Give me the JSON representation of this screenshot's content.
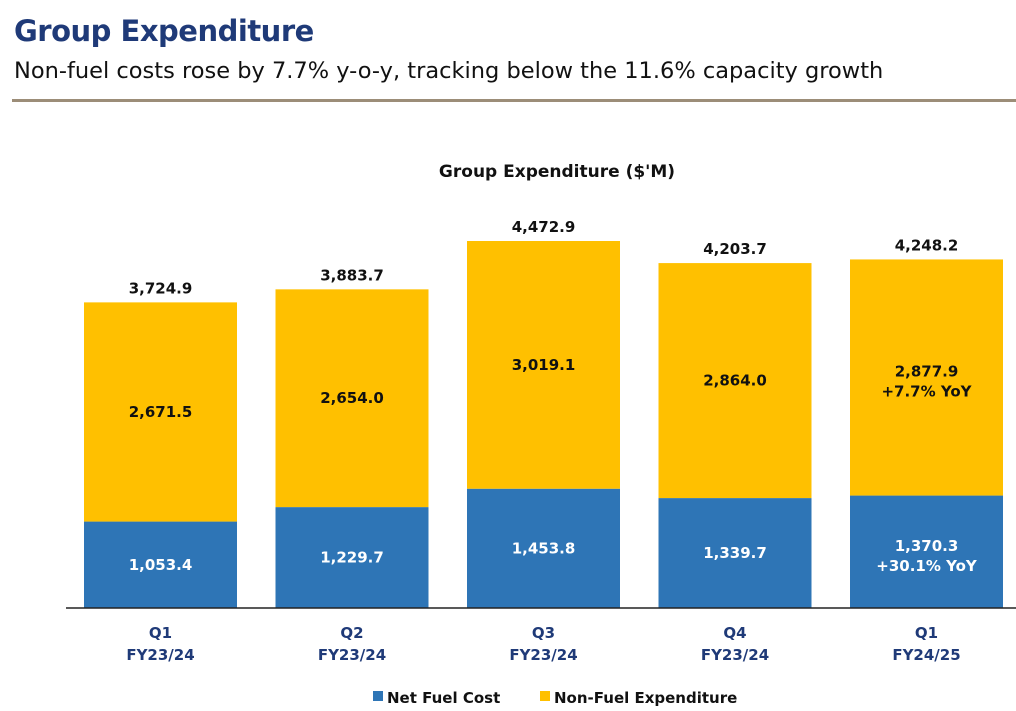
{
  "header": {
    "title": "Group Expenditure",
    "subtitle": "Non-fuel costs rose by 7.7% y-o-y, tracking below the 11.6% capacity growth"
  },
  "colors": {
    "net_fuel": "#2e75b6",
    "non_fuel": "#ffc000",
    "title": "#1f3a78",
    "rule": "#9c8d78"
  },
  "chart_data": {
    "type": "bar",
    "stacked": true,
    "title": "Group Expenditure ($'M)",
    "categories": [
      [
        "Q1",
        "FY23/24"
      ],
      [
        "Q2",
        "FY23/24"
      ],
      [
        "Q3",
        "FY23/24"
      ],
      [
        "Q4",
        "FY23/24"
      ],
      [
        "Q1",
        "FY24/25"
      ]
    ],
    "series": [
      {
        "name": "Net Fuel Cost",
        "values": [
          1053.4,
          1229.7,
          1453.8,
          1339.7,
          1370.3
        ],
        "labels": [
          "1,053.4",
          "1,229.7",
          "1,453.8",
          "1,339.7",
          "1,370.3"
        ],
        "notes": [
          "",
          "",
          "",
          "",
          "+30.1% YoY"
        ]
      },
      {
        "name": "Non-Fuel Expenditure",
        "values": [
          2671.5,
          2654.0,
          3019.1,
          2864.0,
          2877.9
        ],
        "labels": [
          "2,671.5",
          "2,654.0",
          "3,019.1",
          "2,864.0",
          "2,877.9"
        ],
        "notes": [
          "",
          "",
          "",
          "",
          "+7.7% YoY"
        ]
      }
    ],
    "totals": [
      3724.9,
      3883.7,
      4472.9,
      4203.7,
      4248.2
    ],
    "total_labels": [
      "3,724.9",
      "3,883.7",
      "4,472.9",
      "4,203.7",
      "4,248.2"
    ],
    "legend_position": "bottom",
    "ylim": [
      0,
      4472.9
    ],
    "grid": false,
    "y_axis_visible": false
  }
}
